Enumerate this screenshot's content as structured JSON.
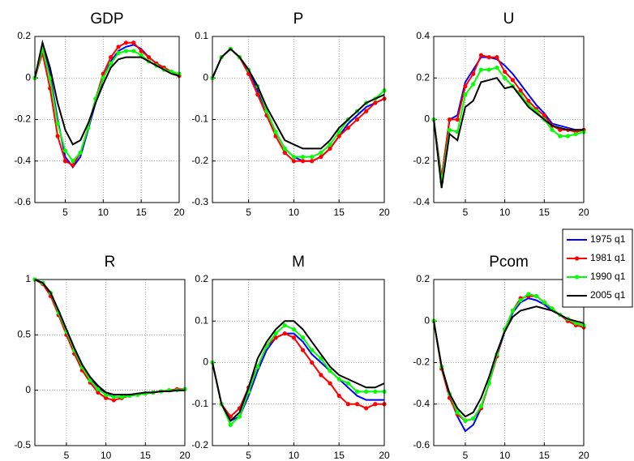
{
  "chart_data": [
    {
      "type": "line",
      "title": "GDP",
      "x": [
        1,
        2,
        3,
        4,
        5,
        6,
        7,
        8,
        9,
        10,
        11,
        12,
        13,
        14,
        15,
        16,
        17,
        18,
        19,
        20
      ],
      "xlim": [
        1,
        20
      ],
      "xticks": [
        5,
        10,
        15,
        20
      ],
      "ylim": [
        -0.6,
        0.2
      ],
      "yticks": [
        -0.6,
        -0.4,
        -0.2,
        0,
        0.2
      ],
      "grid": true,
      "series": [
        {
          "color": "#0000ff",
          "values": [
            0,
            0.15,
            0.02,
            -0.2,
            -0.38,
            -0.43,
            -0.38,
            -0.25,
            -0.12,
            0,
            0.08,
            0.13,
            0.15,
            0.16,
            0.14,
            0.1,
            0.07,
            0.05,
            0.03,
            0.01
          ]
        },
        {
          "color": "#ff0000",
          "marker": "o",
          "values": [
            0,
            0.12,
            -0.05,
            -0.28,
            -0.4,
            -0.42,
            -0.36,
            -0.24,
            -0.1,
            0.02,
            0.1,
            0.15,
            0.17,
            0.17,
            0.13,
            0.1,
            0.07,
            0.05,
            0.03,
            0.01
          ]
        },
        {
          "color": "#00ff00",
          "marker": "o",
          "values": [
            0,
            0.14,
            0,
            -0.22,
            -0.35,
            -0.4,
            -0.36,
            -0.24,
            -0.1,
            0,
            0.07,
            0.12,
            0.13,
            0.13,
            0.11,
            0.08,
            0.06,
            0.04,
            0.03,
            0.02
          ]
        },
        {
          "color": "#000000",
          "values": [
            0,
            0.17,
            0.05,
            -0.12,
            -0.25,
            -0.32,
            -0.3,
            -0.22,
            -0.12,
            -0.03,
            0.05,
            0.09,
            0.1,
            0.1,
            0.1,
            0.08,
            0.06,
            0.04,
            0.02,
            0.01
          ]
        }
      ]
    },
    {
      "type": "line",
      "title": "P",
      "x": [
        1,
        2,
        3,
        4,
        5,
        6,
        7,
        8,
        9,
        10,
        11,
        12,
        13,
        14,
        15,
        16,
        17,
        18,
        19,
        20
      ],
      "xlim": [
        1,
        20
      ],
      "xticks": [
        5,
        10,
        15,
        20
      ],
      "ylim": [
        -0.3,
        0.1
      ],
      "yticks": [
        -0.3,
        -0.2,
        -0.1,
        0,
        0.1
      ],
      "grid": true,
      "series": [
        {
          "color": "#0000ff",
          "values": [
            0,
            0.05,
            0.07,
            0.05,
            0.02,
            -0.03,
            -0.08,
            -0.13,
            -0.17,
            -0.19,
            -0.2,
            -0.2,
            -0.19,
            -0.17,
            -0.14,
            -0.11,
            -0.09,
            -0.07,
            -0.06,
            -0.05
          ]
        },
        {
          "color": "#ff0000",
          "marker": "o",
          "values": [
            0,
            0.05,
            0.07,
            0.05,
            0.01,
            -0.04,
            -0.09,
            -0.14,
            -0.18,
            -0.2,
            -0.2,
            -0.2,
            -0.19,
            -0.17,
            -0.14,
            -0.12,
            -0.1,
            -0.08,
            -0.06,
            -0.05
          ]
        },
        {
          "color": "#00ff00",
          "marker": "o",
          "values": [
            0,
            0.05,
            0.07,
            0.05,
            0.02,
            -0.02,
            -0.08,
            -0.13,
            -0.17,
            -0.19,
            -0.19,
            -0.19,
            -0.18,
            -0.16,
            -0.13,
            -0.1,
            -0.08,
            -0.06,
            -0.05,
            -0.03
          ]
        },
        {
          "color": "#000000",
          "values": [
            0,
            0.05,
            0.07,
            0.05,
            0.02,
            -0.02,
            -0.07,
            -0.11,
            -0.15,
            -0.16,
            -0.17,
            -0.17,
            -0.17,
            -0.15,
            -0.12,
            -0.1,
            -0.08,
            -0.06,
            -0.05,
            -0.04
          ]
        }
      ]
    },
    {
      "type": "line",
      "title": "U",
      "x": [
        1,
        2,
        3,
        4,
        5,
        6,
        7,
        8,
        9,
        10,
        11,
        12,
        13,
        14,
        15,
        16,
        17,
        18,
        19,
        20
      ],
      "xlim": [
        1,
        20
      ],
      "xticks": [
        5,
        10,
        15,
        20
      ],
      "ylim": [
        -0.4,
        0.4
      ],
      "yticks": [
        -0.4,
        -0.2,
        0,
        0.2,
        0.4
      ],
      "grid": true,
      "series": [
        {
          "color": "#0000ff",
          "values": [
            0,
            -0.28,
            0,
            0.02,
            0.18,
            0.24,
            0.3,
            0.3,
            0.29,
            0.26,
            0.22,
            0.17,
            0.12,
            0.07,
            0.03,
            -0.02,
            -0.03,
            -0.04,
            -0.05,
            -0.05
          ]
        },
        {
          "color": "#ff0000",
          "marker": "o",
          "values": [
            0,
            -0.28,
            0,
            0,
            0.16,
            0.22,
            0.31,
            0.3,
            0.3,
            0.23,
            0.19,
            0.14,
            0.09,
            0.05,
            0.02,
            -0.03,
            -0.05,
            -0.05,
            -0.06,
            -0.05
          ]
        },
        {
          "color": "#00ff00",
          "marker": "o",
          "values": [
            0,
            -0.3,
            -0.05,
            -0.06,
            0.12,
            0.17,
            0.24,
            0.24,
            0.25,
            0.2,
            0.16,
            0.12,
            0.07,
            0.04,
            0,
            -0.05,
            -0.08,
            -0.08,
            -0.07,
            -0.06
          ]
        },
        {
          "color": "#000000",
          "values": [
            0,
            -0.33,
            -0.07,
            -0.1,
            0.06,
            0.09,
            0.18,
            0.19,
            0.2,
            0.15,
            0.16,
            0.11,
            0.06,
            0.03,
            0,
            -0.03,
            -0.04,
            -0.05,
            -0.05,
            -0.05
          ]
        }
      ]
    },
    {
      "type": "line",
      "title": "R",
      "x": [
        1,
        2,
        3,
        4,
        5,
        6,
        7,
        8,
        9,
        10,
        11,
        12,
        13,
        14,
        15,
        16,
        17,
        18,
        19,
        20
      ],
      "xlim": [
        1,
        20
      ],
      "xticks": [
        5,
        10,
        15,
        20
      ],
      "ylim": [
        -0.5,
        1
      ],
      "yticks": [
        -0.5,
        0,
        0.5,
        1
      ],
      "grid": true,
      "series": [
        {
          "color": "#0000ff",
          "values": [
            1,
            0.96,
            0.87,
            0.72,
            0.55,
            0.38,
            0.23,
            0.11,
            0.03,
            -0.03,
            -0.06,
            -0.06,
            -0.05,
            -0.04,
            -0.03,
            -0.02,
            -0.01,
            -0.01,
            0,
            0
          ]
        },
        {
          "color": "#ff0000",
          "marker": "o",
          "values": [
            1,
            0.96,
            0.85,
            0.68,
            0.5,
            0.33,
            0.18,
            0.07,
            -0.02,
            -0.07,
            -0.09,
            -0.07,
            -0.05,
            -0.04,
            -0.03,
            -0.02,
            -0.01,
            0,
            0.01,
            0.01
          ]
        },
        {
          "color": "#00ff00",
          "marker": "o",
          "values": [
            1,
            0.97,
            0.88,
            0.7,
            0.53,
            0.36,
            0.21,
            0.09,
            0.01,
            -0.04,
            -0.06,
            -0.06,
            -0.05,
            -0.04,
            -0.03,
            -0.02,
            -0.01,
            0,
            0,
            0.01
          ]
        },
        {
          "color": "#000000",
          "values": [
            1,
            0.97,
            0.88,
            0.72,
            0.55,
            0.38,
            0.23,
            0.12,
            0.04,
            -0.02,
            -0.04,
            -0.04,
            -0.04,
            -0.03,
            -0.02,
            -0.02,
            -0.01,
            -0.01,
            0,
            0
          ]
        }
      ]
    },
    {
      "type": "line",
      "title": "M",
      "x": [
        1,
        2,
        3,
        4,
        5,
        6,
        7,
        8,
        9,
        10,
        11,
        12,
        13,
        14,
        15,
        16,
        17,
        18,
        19,
        20
      ],
      "xlim": [
        1,
        20
      ],
      "xticks": [
        5,
        10,
        15,
        20
      ],
      "ylim": [
        -0.2,
        0.2
      ],
      "yticks": [
        -0.2,
        -0.1,
        0,
        0.1,
        0.2
      ],
      "grid": true,
      "series": [
        {
          "color": "#0000ff",
          "values": [
            0,
            -0.1,
            -0.14,
            -0.13,
            -0.08,
            -0.02,
            0.03,
            0.06,
            0.07,
            0.07,
            0.05,
            0.02,
            0,
            -0.02,
            -0.04,
            -0.06,
            -0.08,
            -0.09,
            -0.09,
            -0.09
          ]
        },
        {
          "color": "#ff0000",
          "marker": "o",
          "values": [
            0,
            -0.1,
            -0.13,
            -0.11,
            -0.06,
            -0.01,
            0.04,
            0.06,
            0.07,
            0.06,
            0.03,
            0,
            -0.03,
            -0.05,
            -0.08,
            -0.1,
            -0.1,
            -0.11,
            -0.1,
            -0.1
          ]
        },
        {
          "color": "#00ff00",
          "marker": "o",
          "values": [
            0,
            -0.1,
            -0.15,
            -0.13,
            -0.07,
            -0.01,
            0.04,
            0.07,
            0.09,
            0.08,
            0.06,
            0.03,
            0.01,
            -0.02,
            -0.04,
            -0.05,
            -0.07,
            -0.07,
            -0.07,
            -0.07
          ]
        },
        {
          "color": "#000000",
          "values": [
            0,
            -0.1,
            -0.14,
            -0.12,
            -0.06,
            0.01,
            0.05,
            0.08,
            0.1,
            0.1,
            0.08,
            0.05,
            0.02,
            -0.01,
            -0.03,
            -0.04,
            -0.05,
            -0.06,
            -0.06,
            -0.05
          ]
        }
      ]
    },
    {
      "type": "line",
      "title": "Pcom",
      "x": [
        1,
        2,
        3,
        4,
        5,
        6,
        7,
        8,
        9,
        10,
        11,
        12,
        13,
        14,
        15,
        16,
        17,
        18,
        19,
        20
      ],
      "xlim": [
        1,
        20
      ],
      "xticks": [
        5,
        10,
        15,
        20
      ],
      "ylim": [
        -0.6,
        0.2
      ],
      "yticks": [
        -0.6,
        -0.4,
        -0.2,
        0,
        0.2
      ],
      "grid": true,
      "series": [
        {
          "name": "1975 q1",
          "color": "#0000ff",
          "values": [
            0,
            -0.22,
            -0.36,
            -0.46,
            -0.53,
            -0.5,
            -0.42,
            -0.3,
            -0.17,
            -0.05,
            0.04,
            0.09,
            0.11,
            0.1,
            0.08,
            0.05,
            0.03,
            0.01,
            -0.01,
            -0.02
          ]
        },
        {
          "name": "1981 q1",
          "color": "#ff0000",
          "marker": "o",
          "values": [
            0,
            -0.23,
            -0.37,
            -0.45,
            -0.48,
            -0.47,
            -0.42,
            -0.3,
            -0.17,
            -0.04,
            0.05,
            0.11,
            0.12,
            0.12,
            0.09,
            0.06,
            0.03,
            0,
            -0.02,
            -0.03
          ]
        },
        {
          "name": "1990 q1",
          "color": "#00ff00",
          "marker": "o",
          "values": [
            0,
            -0.22,
            -0.35,
            -0.44,
            -0.48,
            -0.47,
            -0.41,
            -0.3,
            -0.16,
            -0.04,
            0.05,
            0.1,
            0.13,
            0.12,
            0.09,
            0.06,
            0.03,
            0.01,
            -0.01,
            -0.02
          ]
        },
        {
          "name": "2005 q1",
          "color": "#000000",
          "values": [
            0,
            -0.22,
            -0.35,
            -0.42,
            -0.46,
            -0.44,
            -0.37,
            -0.27,
            -0.15,
            -0.05,
            0.02,
            0.05,
            0.06,
            0.07,
            0.06,
            0.05,
            0.03,
            0.01,
            0,
            -0.01
          ]
        }
      ]
    }
  ]
}
